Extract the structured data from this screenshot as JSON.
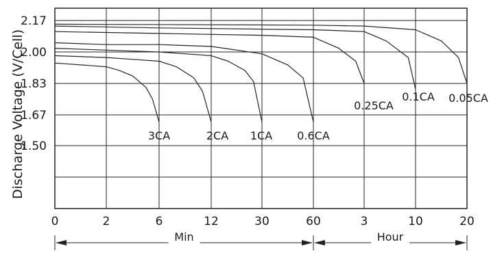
{
  "chart_data": {
    "type": "line",
    "title": "",
    "ylabel": "Discharge Voltage (V/Cell)",
    "y_ticks": [
      "2.17",
      "2.00",
      "1.83",
      "1.67",
      "1.50"
    ],
    "y_tick_values": [
      2.17,
      2.0,
      1.83,
      1.67,
      1.5
    ],
    "ylim": [
      1.17,
      2.2
    ],
    "x_ticks": [
      "0",
      "2",
      "6",
      "12",
      "30",
      "60",
      "3",
      "10",
      "20"
    ],
    "x_tick_units": [
      "Min",
      "Min",
      "Min",
      "Min",
      "Min",
      "Min",
      "Hour",
      "Hour",
      "Hour"
    ],
    "x_tick_minutes": [
      0,
      2,
      6,
      12,
      30,
      60,
      180,
      600,
      1200
    ],
    "x_scale": "piecewise by tick index",
    "axis_segments": [
      {
        "label": "Min",
        "from_tick": "0",
        "to_tick": "60"
      },
      {
        "label": "Hour",
        "from_tick": "60",
        "to_tick": "20"
      }
    ],
    "grid": true,
    "series": [
      {
        "name": "3CA",
        "x_minutes": [
          0,
          1,
          2,
          3,
          4,
          5,
          5.5,
          6
        ],
        "y": [
          1.94,
          1.93,
          1.92,
          1.9,
          1.87,
          1.81,
          1.75,
          1.63
        ]
      },
      {
        "name": "2CA",
        "x_minutes": [
          0,
          2,
          4,
          6,
          8,
          10,
          11,
          12
        ],
        "y": [
          1.98,
          1.97,
          1.96,
          1.95,
          1.92,
          1.86,
          1.79,
          1.63
        ]
      },
      {
        "name": "1CA",
        "x_minutes": [
          0,
          2,
          6,
          12,
          18,
          24,
          27,
          30
        ],
        "y": [
          2.02,
          2.01,
          2.0,
          1.98,
          1.95,
          1.9,
          1.84,
          1.63
        ]
      },
      {
        "name": "0.6CA",
        "x_minutes": [
          0,
          2,
          6,
          12,
          30,
          45,
          54,
          60
        ],
        "y": [
          2.05,
          2.04,
          2.04,
          2.03,
          1.99,
          1.93,
          1.86,
          1.63
        ]
      },
      {
        "name": "0.25CA",
        "x_minutes": [
          0,
          6,
          30,
          60,
          120,
          160,
          180
        ],
        "y": [
          2.11,
          2.1,
          2.09,
          2.08,
          2.02,
          1.95,
          1.83
        ]
      },
      {
        "name": "0.1CA",
        "x_minutes": [
          0,
          6,
          60,
          180,
          360,
          540,
          600
        ],
        "y": [
          2.14,
          2.13,
          2.12,
          2.11,
          2.06,
          1.97,
          1.8
        ]
      },
      {
        "name": "0.05CA",
        "x_minutes": [
          0,
          60,
          180,
          600,
          900,
          1100,
          1200
        ],
        "y": [
          2.15,
          2.145,
          2.14,
          2.12,
          2.06,
          1.97,
          1.83
        ]
      }
    ]
  }
}
